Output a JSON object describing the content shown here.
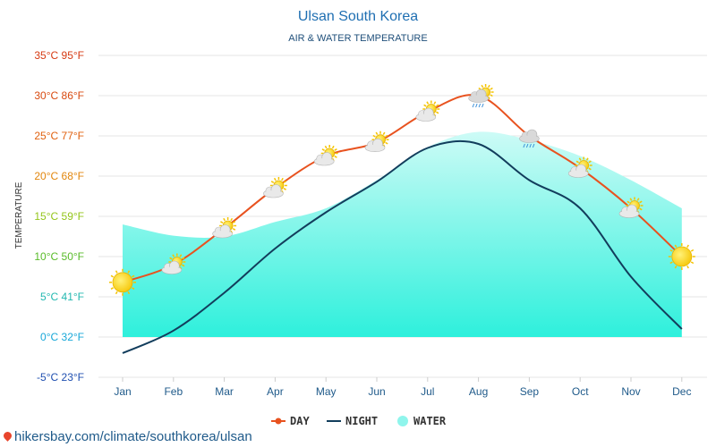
{
  "chart_data": {
    "type": "line",
    "title": "Ulsan South Korea",
    "subtitle": "AIR & WATER TEMPERATURE",
    "ylabel": "TEMPERATURE",
    "xlabel": "",
    "ylim": [
      -5,
      35
    ],
    "yticks": [
      {
        "value": 35,
        "label": "35°C 95°F",
        "color": "#d63a13"
      },
      {
        "value": 30,
        "label": "30°C 86°F",
        "color": "#d84a10"
      },
      {
        "value": 25,
        "label": "25°C 77°F",
        "color": "#e0600e"
      },
      {
        "value": 20,
        "label": "20°C 68°F",
        "color": "#e2860c"
      },
      {
        "value": 15,
        "label": "15°C 59°F",
        "color": "#93c51a"
      },
      {
        "value": 10,
        "label": "10°C 50°F",
        "color": "#58bb28"
      },
      {
        "value": 5,
        "label": "5°C 41°F",
        "color": "#22b8b0"
      },
      {
        "value": 0,
        "label": "0°C 32°F",
        "color": "#16a7d8"
      },
      {
        "value": -5,
        "label": "-5°C 23°F",
        "color": "#1f4fb0"
      }
    ],
    "categories": [
      "Jan",
      "Feb",
      "Mar",
      "Apr",
      "May",
      "Jun",
      "Jul",
      "Aug",
      "Sep",
      "Oct",
      "Nov",
      "Dec"
    ],
    "grid": true,
    "legend_position": "bottom",
    "series": [
      {
        "name": "DAY",
        "color": "#e8521f",
        "values": [
          6.8,
          9,
          13.5,
          18.5,
          22.5,
          24.2,
          28,
          30,
          25,
          21,
          16,
          10
        ]
      },
      {
        "name": "NIGHT",
        "color": "#123d5c",
        "values": [
          -2,
          0.8,
          5.5,
          11,
          15.5,
          19.3,
          23.5,
          24,
          19.5,
          16,
          7.5,
          1
        ]
      },
      {
        "name": "WATER",
        "color": "#7ff5ea",
        "values": [
          14,
          12.6,
          12.5,
          14.3,
          16,
          19.5,
          23.6,
          25.5,
          24.5,
          22.5,
          19.5,
          16
        ]
      }
    ],
    "weather_icons": [
      "sun-icon",
      "partly-cloudy-icon",
      "partly-cloudy-icon",
      "partly-cloudy-icon",
      "partly-cloudy-icon",
      "partly-cloudy-icon",
      "partly-cloudy-icon",
      "rain-cloud-icon",
      "rain-cloud-icon",
      "partly-cloudy-icon",
      "partly-cloudy-icon",
      "sun-icon"
    ]
  },
  "footer": {
    "text": "hikersbay.com/climate/southkorea/ulsan"
  }
}
